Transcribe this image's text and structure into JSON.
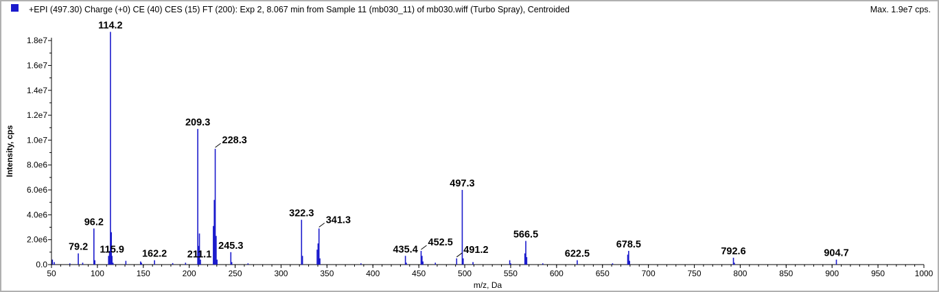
{
  "header": {
    "title": "+EPI (497.30) Charge (+0) CE (40) CES (15) FT (200): Exp 2, 8.067 min from Sample 11 (mb030_11) of mb030.wiff (Turbo Spray), Centroided",
    "max_label": "Max. 1.9e7 cps.",
    "series_color": "#1a1acc"
  },
  "chart_data": {
    "type": "bar",
    "title": "+EPI (497.30) Charge (+0) CE (40) CES (15) FT (200): Exp 2, 8.067 min from Sample 11 (mb030_11) of mb030.wiff (Turbo Spray), Centroided",
    "xlabel": "m/z, Da",
    "ylabel": "Intensity, cps",
    "xlim": [
      50,
      1000
    ],
    "ylim": [
      0,
      19000000
    ],
    "x_ticks": [
      50,
      100,
      150,
      200,
      250,
      300,
      350,
      400,
      450,
      500,
      550,
      600,
      650,
      700,
      750,
      800,
      850,
      900,
      950,
      1000
    ],
    "y_ticks": [
      {
        "value": 0,
        "label": "0.0"
      },
      {
        "value": 2000000,
        "label": "2.0e6"
      },
      {
        "value": 4000000,
        "label": "4.0e6"
      },
      {
        "value": 6000000,
        "label": "6.0e6"
      },
      {
        "value": 8000000,
        "label": "8.0e6"
      },
      {
        "value": 10000000,
        "label": "1.0e7"
      },
      {
        "value": 12000000,
        "label": "1.2e7"
      },
      {
        "value": 14000000,
        "label": "1.4e7"
      },
      {
        "value": 16000000,
        "label": "1.6e7"
      },
      {
        "value": 18000000,
        "label": "1.8e7"
      }
    ],
    "grid": false,
    "legend": "top-left",
    "peaks": [
      {
        "mz": 51.0,
        "intensity": 400000
      },
      {
        "mz": 53.0,
        "intensity": 200000
      },
      {
        "mz": 70.0,
        "intensity": 100000
      },
      {
        "mz": 79.2,
        "intensity": 900000
      },
      {
        "mz": 84.0,
        "intensity": 150000
      },
      {
        "mz": 96.2,
        "intensity": 2900000
      },
      {
        "mz": 97.2,
        "intensity": 350000
      },
      {
        "mz": 112.2,
        "intensity": 700000
      },
      {
        "mz": 113.2,
        "intensity": 1100000
      },
      {
        "mz": 114.2,
        "intensity": 18700000
      },
      {
        "mz": 115.2,
        "intensity": 2600000
      },
      {
        "mz": 115.9,
        "intensity": 700000
      },
      {
        "mz": 117.0,
        "intensity": 150000
      },
      {
        "mz": 131.0,
        "intensity": 300000
      },
      {
        "mz": 147.0,
        "intensity": 250000
      },
      {
        "mz": 148.0,
        "intensity": 150000
      },
      {
        "mz": 162.2,
        "intensity": 350000
      },
      {
        "mz": 182.0,
        "intensity": 120000
      },
      {
        "mz": 196.0,
        "intensity": 150000
      },
      {
        "mz": 209.3,
        "intensity": 10900000
      },
      {
        "mz": 210.3,
        "intensity": 1500000
      },
      {
        "mz": 211.1,
        "intensity": 2500000
      },
      {
        "mz": 212.2,
        "intensity": 400000
      },
      {
        "mz": 226.3,
        "intensity": 3100000
      },
      {
        "mz": 227.3,
        "intensity": 5200000
      },
      {
        "mz": 228.3,
        "intensity": 9300000
      },
      {
        "mz": 229.3,
        "intensity": 2300000
      },
      {
        "mz": 230.3,
        "intensity": 400000
      },
      {
        "mz": 245.3,
        "intensity": 1000000
      },
      {
        "mz": 246.3,
        "intensity": 200000
      },
      {
        "mz": 264.0,
        "intensity": 100000
      },
      {
        "mz": 322.3,
        "intensity": 3600000
      },
      {
        "mz": 323.3,
        "intensity": 700000
      },
      {
        "mz": 339.3,
        "intensity": 1200000
      },
      {
        "mz": 340.3,
        "intensity": 1700000
      },
      {
        "mz": 341.3,
        "intensity": 2900000
      },
      {
        "mz": 342.3,
        "intensity": 500000
      },
      {
        "mz": 387.0,
        "intensity": 100000
      },
      {
        "mz": 435.4,
        "intensity": 700000
      },
      {
        "mz": 436.4,
        "intensity": 150000
      },
      {
        "mz": 452.5,
        "intensity": 1100000
      },
      {
        "mz": 453.5,
        "intensity": 700000
      },
      {
        "mz": 454.5,
        "intensity": 250000
      },
      {
        "mz": 468.0,
        "intensity": 150000
      },
      {
        "mz": 491.2,
        "intensity": 500000
      },
      {
        "mz": 497.3,
        "intensity": 6000000
      },
      {
        "mz": 498.3,
        "intensity": 500000
      },
      {
        "mz": 509.0,
        "intensity": 200000
      },
      {
        "mz": 549.0,
        "intensity": 350000
      },
      {
        "mz": 550.0,
        "intensity": 100000
      },
      {
        "mz": 565.5,
        "intensity": 900000
      },
      {
        "mz": 566.5,
        "intensity": 1900000
      },
      {
        "mz": 567.5,
        "intensity": 600000
      },
      {
        "mz": 585.0,
        "intensity": 100000
      },
      {
        "mz": 622.5,
        "intensity": 350000
      },
      {
        "mz": 661.0,
        "intensity": 100000
      },
      {
        "mz": 677.5,
        "intensity": 800000
      },
      {
        "mz": 678.5,
        "intensity": 1100000
      },
      {
        "mz": 679.5,
        "intensity": 300000
      },
      {
        "mz": 792.6,
        "intensity": 550000
      },
      {
        "mz": 793.6,
        "intensity": 150000
      },
      {
        "mz": 904.7,
        "intensity": 400000
      }
    ],
    "annotations": [
      {
        "text": "114.2",
        "mz": 114.2,
        "intensity": 18700000
      },
      {
        "text": "209.3",
        "mz": 209.3,
        "intensity": 10900000
      },
      {
        "text": "228.3",
        "mz": 228.3,
        "intensity": 9300000,
        "leader": true
      },
      {
        "text": "497.3",
        "mz": 497.3,
        "intensity": 6000000
      },
      {
        "text": "322.3",
        "mz": 322.3,
        "intensity": 3600000
      },
      {
        "text": "341.3",
        "mz": 341.3,
        "intensity": 2900000,
        "leader": true
      },
      {
        "text": "96.2",
        "mz": 96.2,
        "intensity": 2900000
      },
      {
        "text": "566.5",
        "mz": 566.5,
        "intensity": 1900000
      },
      {
        "text": "79.2",
        "mz": 79.2,
        "intensity": 900000
      },
      {
        "text": "115.9",
        "mz": 115.9,
        "intensity": 700000
      },
      {
        "text": "162.2",
        "mz": 162.2,
        "intensity": 350000
      },
      {
        "text": "211.1",
        "mz": 211.1,
        "intensity": 300000
      },
      {
        "text": "245.3",
        "mz": 245.3,
        "intensity": 1000000
      },
      {
        "text": "435.4",
        "mz": 435.4,
        "intensity": 700000
      },
      {
        "text": "452.5",
        "mz": 452.5,
        "intensity": 1100000,
        "leader": true
      },
      {
        "text": "491.2",
        "mz": 491.2,
        "intensity": 500000,
        "leader": true
      },
      {
        "text": "622.5",
        "mz": 622.5,
        "intensity": 350000
      },
      {
        "text": "678.5",
        "mz": 678.5,
        "intensity": 1100000
      },
      {
        "text": "792.6",
        "mz": 792.6,
        "intensity": 550000
      },
      {
        "text": "904.7",
        "mz": 904.7,
        "intensity": 400000
      }
    ]
  }
}
